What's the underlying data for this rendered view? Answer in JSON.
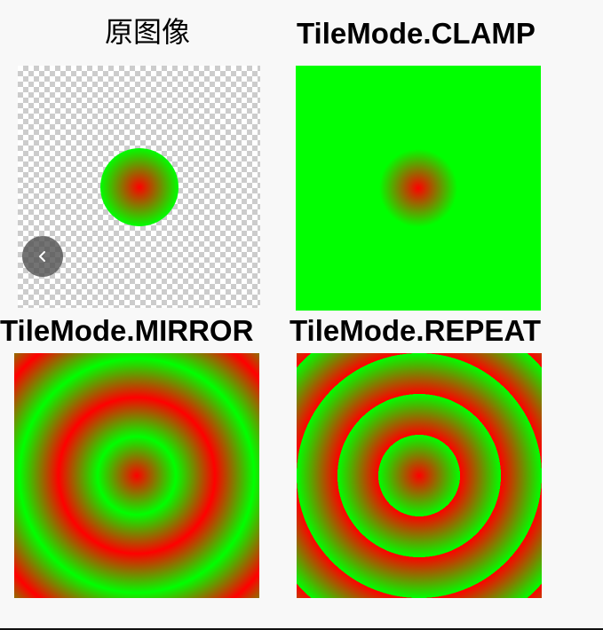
{
  "panels": {
    "original": {
      "title": "原图像"
    },
    "clamp": {
      "title": "TileMode.CLAMP"
    },
    "mirror": {
      "title": "TileMode.MIRROR"
    },
    "repeat": {
      "title": "TileMode.REPEAT"
    }
  },
  "gradient": {
    "center_color": "#ff0000",
    "edge_color": "#00ff00"
  },
  "nav": {
    "back_icon": "chevron-left-icon"
  },
  "colors": {
    "background": "#f8f8f8",
    "label": "#000000",
    "checker_light": "#ffffff",
    "checker_dark": "#cccccc"
  }
}
